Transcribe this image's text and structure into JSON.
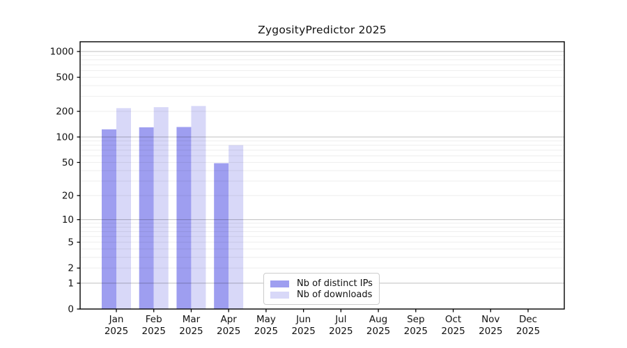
{
  "window": {
    "background": "#ffffff"
  },
  "chart_data": {
    "type": "bar",
    "title": "ZygosityPredictor 2025",
    "categories": [
      "Jan",
      "Feb",
      "Mar",
      "Apr",
      "May",
      "Jun",
      "Jul",
      "Aug",
      "Sep",
      "Oct",
      "Nov",
      "Dec"
    ],
    "year_label": "2025",
    "series": [
      {
        "name": "Nb of distinct IPs",
        "color": "#9e9ef0",
        "values": [
          123,
          130,
          131,
          49,
          null,
          null,
          null,
          null,
          null,
          null,
          null,
          null
        ]
      },
      {
        "name": "Nb of downloads",
        "color": "#d8d8f8",
        "values": [
          218,
          224,
          231,
          80,
          null,
          null,
          null,
          null,
          null,
          null,
          null,
          null
        ]
      }
    ],
    "yscale": "log1p",
    "ylim": [
      0,
      1275
    ],
    "ytick_values": [
      1000,
      500,
      200,
      100,
      50,
      20,
      10,
      5,
      2,
      1,
      0
    ],
    "ytick_labels": [
      "1000",
      "500",
      "200",
      "100",
      "50",
      "20",
      "10",
      "5",
      "2",
      "1",
      "0"
    ],
    "grid": true,
    "legend_position": "inside-bottom-center",
    "colors": {
      "axis": "#000000",
      "tick_text": "#111111",
      "grid_major": "rgba(0,0,0,0.25)",
      "grid_minor": "rgba(0,0,0,0.07)",
      "legend_border": "#cccccc"
    }
  }
}
